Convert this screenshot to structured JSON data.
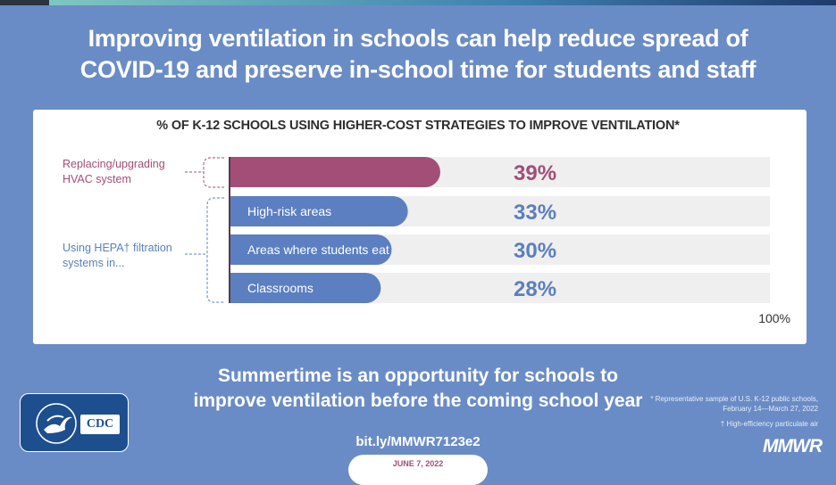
{
  "title": {
    "line1": "Improving ventilation in schools can help reduce spread of",
    "line2": "COVID-19 and preserve in-school time for students and staff"
  },
  "chart_data": {
    "type": "bar",
    "orientation": "horizontal",
    "title": "% OF K-12 SCHOOLS USING HIGHER-COST STRATEGIES TO IMPROVE VENTILATION*",
    "groups": [
      {
        "label": "Replacing/upgrading HVAC system",
        "label_lines": [
          "Replacing/upgrading",
          "HVAC system"
        ]
      },
      {
        "label": "Using HEPA† filtration systems in...",
        "label_lines": [
          "Using HEPA† filtration",
          "systems in..."
        ]
      }
    ],
    "categories": [
      "",
      "High-risk areas",
      "Areas where students eat",
      "Classrooms"
    ],
    "category_group": [
      0,
      1,
      1,
      1
    ],
    "values": [
      39,
      33,
      30,
      28
    ],
    "value_labels": [
      "39%",
      "33%",
      "30%",
      "28%"
    ],
    "xlim": [
      0,
      100
    ],
    "max_label": "100%",
    "colors": {
      "hvac": "#a24e77",
      "hepa": "#5b7fc0",
      "track": "#efefef",
      "axis": "#5a3a4a"
    }
  },
  "footer": {
    "line1": "Summertime is an opportunity for schools to",
    "line2": "improve ventilation before the coming school year"
  },
  "link": "bit.ly/MMWR7123e2",
  "date": "JUNE 7, 2022",
  "footnotes": {
    "representative": "* Representative sample of U.S. K-12 public schools, February 14—March 27, 2022",
    "hepa": "† High-efficiency particulate air"
  },
  "publication": "MMWR",
  "logo_text": "CDC"
}
